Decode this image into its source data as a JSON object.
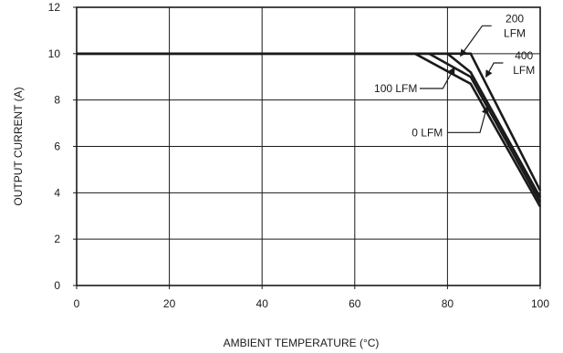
{
  "chart_data": {
    "type": "line",
    "title": "",
    "xlabel": "AMBIENT TEMPERATURE (°C)",
    "ylabel": "OUTPUT CURRENT (A)",
    "xlim": [
      0,
      100
    ],
    "ylim": [
      0,
      12
    ],
    "xticks": [
      0,
      20,
      40,
      60,
      80,
      100
    ],
    "yticks": [
      0,
      2,
      4,
      6,
      8,
      10,
      12
    ],
    "x_tick_labels": [
      "0",
      "20",
      "40",
      "60",
      "80",
      "100"
    ],
    "y_tick_labels": [
      "0",
      "2",
      "4",
      "6",
      "8",
      "10",
      "12"
    ],
    "grid": true,
    "legend": "none",
    "series": [
      {
        "name": "0 LFM",
        "x": [
          0,
          73,
          85,
          100
        ],
        "y": [
          10,
          10,
          8.7,
          3.4
        ]
      },
      {
        "name": "100 LFM",
        "x": [
          0,
          76,
          85,
          100
        ],
        "y": [
          10,
          10,
          9.0,
          3.6
        ]
      },
      {
        "name": "200 LFM",
        "x": [
          0,
          80,
          85,
          100
        ],
        "y": [
          10,
          10,
          9.2,
          3.8
        ]
      },
      {
        "name": "400 LFM",
        "x": [
          0,
          85,
          100
        ],
        "y": [
          10,
          10,
          4.1
        ]
      }
    ],
    "annotations": [
      {
        "lines": [
          "0 LFM"
        ],
        "text_anchor": "end",
        "text_at": [
          79,
          6.6
        ],
        "tail_at": [
          80,
          6.6
        ],
        "arrow_from": [
          87,
          6.6
        ],
        "arrow_to": [
          88.5,
          7.7
        ]
      },
      {
        "lines": [
          "100 LFM"
        ],
        "text_anchor": "end",
        "text_at": [
          73.5,
          8.5
        ],
        "tail_at": [
          74,
          8.5
        ],
        "arrow_from": [
          79,
          8.5
        ],
        "arrow_to": [
          81.5,
          9.4
        ]
      },
      {
        "lines": [
          "200",
          "LFM"
        ],
        "text_anchor": "middle",
        "text_at": [
          94.5,
          11.2
        ],
        "tail_at": [
          89.5,
          11.2
        ],
        "arrow_from": [
          87.5,
          11.2
        ],
        "arrow_to": [
          82.8,
          9.9
        ]
      },
      {
        "lines": [
          "400",
          "LFM"
        ],
        "text_anchor": "middle",
        "text_at": [
          96.5,
          9.6
        ],
        "tail_at": [
          92,
          9.6
        ],
        "arrow_from": [
          90,
          9.6
        ],
        "arrow_to": [
          88.3,
          9.0
        ]
      }
    ],
    "colors": {
      "line": "#1a1a1a",
      "grid": "#1a1a1a"
    }
  }
}
